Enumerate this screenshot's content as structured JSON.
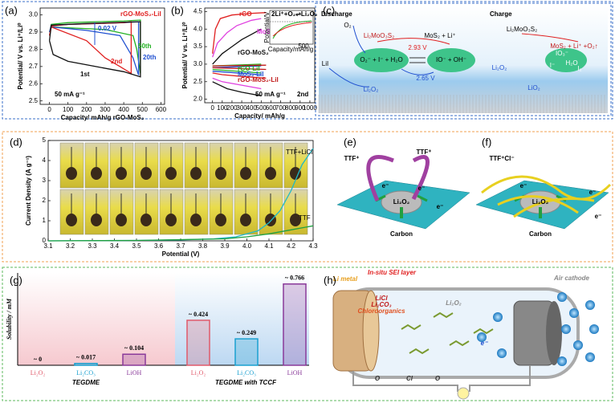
{
  "panel_labels": [
    "(a)",
    "(b)",
    "(c)",
    "(d)",
    "(e)",
    "(f)",
    "(g)",
    "(h)"
  ],
  "chart_data": [
    {
      "type": "line",
      "x_label": "Capacity/ mAh/g rGO-MoS₂",
      "y_label": "Potential/ V vs. Li⁺/Li⁰",
      "xlim": [
        -50,
        620
      ],
      "xticks": [
        0,
        100,
        200,
        300,
        400,
        500,
        600
      ],
      "ylim": [
        2.48,
        3.04
      ],
      "yticks": [
        2.5,
        2.6,
        2.7,
        2.8,
        2.9,
        {
          "value": 3,
          "label": "3.0"
        }
      ],
      "annotations": [
        "rGO-MoS₂-LiI",
        "0.02 V",
        "50 mA g⁻¹"
      ],
      "series": [
        {
          "name": "50th",
          "color": "#21b021",
          "x": [
            0,
            10,
            100,
            250,
            400,
            490,
            490,
            470,
            450,
            300,
            100,
            10,
            0
          ],
          "y": [
            2.9,
            2.945,
            2.955,
            2.96,
            2.965,
            2.97,
            2.66,
            2.8,
            2.88,
            2.915,
            2.925,
            2.93,
            2.9
          ]
        },
        {
          "name": "20th",
          "color": "#2050d0",
          "x": [
            0,
            10,
            100,
            250,
            400,
            480,
            480,
            450,
            380,
            200,
            10,
            0
          ],
          "y": [
            2.9,
            2.94,
            2.945,
            2.95,
            2.955,
            2.96,
            2.65,
            2.75,
            2.88,
            2.91,
            2.93,
            2.9
          ]
        },
        {
          "name": "2nd",
          "color": "#e02020",
          "x": [
            0,
            10,
            100,
            250,
            400,
            440,
            440,
            380,
            300,
            200,
            10,
            0
          ],
          "y": [
            2.88,
            2.935,
            2.945,
            2.95,
            2.955,
            2.96,
            2.66,
            2.7,
            2.75,
            2.85,
            2.93,
            2.88
          ]
        },
        {
          "name": "1st",
          "color": "#111111",
          "x": [
            0,
            10,
            200,
            480,
            490,
            490,
            400,
            250,
            100,
            20,
            0
          ],
          "y": [
            2.85,
            2.94,
            2.95,
            2.96,
            2.96,
            2.64,
            2.67,
            2.7,
            2.73,
            2.77,
            2.85
          ]
        }
      ]
    },
    {
      "type": "line",
      "x_label": "Capacity/ mAh/g",
      "y_label": "Potential/ V vs. Li⁺/Li⁰",
      "xlim": [
        -80,
        1050
      ],
      "xticks": [
        0,
        100,
        200,
        300,
        400,
        500,
        600,
        700,
        800,
        900,
        1000
      ],
      "ylim": [
        1.9,
        4.6
      ],
      "yticks": [
        {
          "value": 2,
          "label": "2.0"
        },
        2.5,
        {
          "value": 3,
          "label": "3.0"
        },
        3.5,
        {
          "value": 4,
          "label": "4.0"
        },
        4.5
      ],
      "annotations": [
        "2nd",
        "50 mA g⁻¹"
      ],
      "inset": {
        "title": "2Li⁺+O₂⇌Li₂O₂ (2.96V)",
        "x_label": "Capacity/mAh/g",
        "y_label": "Potential/V",
        "tick": "500"
      },
      "series": [
        {
          "name": "rGO",
          "color": "#e02020",
          "x": [
            0,
            30,
            80,
            200,
            400,
            550,
            null,
            0,
            100,
            300,
            550
          ],
          "y": [
            3.3,
            4.0,
            4.3,
            4.4,
            4.45,
            4.47,
            null,
            2.75,
            2.7,
            2.65,
            2.6
          ]
        },
        {
          "name": "MoS₂",
          "color": "#e040e0",
          "x": [
            0,
            50,
            150,
            250,
            400,
            500,
            null,
            0,
            100,
            300,
            500
          ],
          "y": [
            3.2,
            3.6,
            3.9,
            4.1,
            4.25,
            4.3,
            null,
            2.6,
            2.5,
            2.4,
            2.3
          ]
        },
        {
          "name": "rGO-MoS₂",
          "color": "#111111",
          "x": [
            0,
            100,
            200,
            300,
            400,
            500,
            null,
            0,
            150,
            300,
            500
          ],
          "y": [
            3.0,
            3.3,
            3.5,
            3.7,
            3.85,
            4.0,
            null,
            2.5,
            2.3,
            2.2,
            2.1
          ]
        },
        {
          "name": "rGO-LiI",
          "color": "#21b021",
          "x": [
            0,
            500,
            null,
            0,
            500
          ],
          "y": [
            2.95,
            3.0,
            null,
            2.85,
            2.75
          ]
        },
        {
          "name": "MoS₂-LiI",
          "color": "#2050d0",
          "x": [
            0,
            500,
            null,
            0,
            500
          ],
          "y": [
            2.9,
            2.95,
            null,
            2.8,
            2.7
          ]
        },
        {
          "name": "rGO-MoS₂-LiI",
          "color": "#c01818",
          "x": [
            0,
            550,
            null,
            0,
            550
          ],
          "y": [
            2.95,
            2.97,
            null,
            2.9,
            2.85
          ]
        }
      ]
    },
    {
      "type": "line",
      "x_label": "Potential (V)",
      "y_label": "Current Density (A g⁻¹)",
      "xlim": [
        3.1,
        4.3
      ],
      "xticks": [
        3.1,
        3.2,
        3.3,
        3.4,
        3.5,
        3.6,
        3.7,
        3.8,
        3.9,
        {
          "value": 4,
          "label": "4.0"
        },
        4.1,
        4.2,
        4.3
      ],
      "ylim": [
        0,
        5
      ],
      "yticks": [
        0,
        1,
        2,
        3,
        4,
        5
      ],
      "series": [
        {
          "name": "TTF+LiCl",
          "color": "#20b8c8",
          "x": [
            3.1,
            3.5,
            3.7,
            3.85,
            3.95,
            4.05,
            4.1,
            4.15,
            4.2,
            4.25,
            4.3
          ],
          "y": [
            0,
            0.02,
            0.05,
            0.1,
            0.2,
            0.5,
            0.9,
            1.5,
            2.5,
            3.8,
            4.6
          ]
        },
        {
          "name": "TTF",
          "color": "#20a040",
          "x": [
            3.1,
            3.5,
            3.9,
            4.0,
            4.1,
            4.2,
            4.3
          ],
          "y": [
            0,
            0.02,
            0.1,
            0.2,
            0.35,
            0.55,
            0.75
          ]
        }
      ]
    },
    {
      "type": "bar",
      "y_label": "Solubility / mM",
      "ylim": [
        0,
        0.87
      ],
      "categories": [
        "Li₂O₂",
        "Li₂CO₃",
        "LiOH",
        "Li₂O₂",
        "Li₂CO₃",
        "LiOH"
      ],
      "values": [
        0,
        0.017,
        0.104,
        0.424,
        0.249,
        0.766
      ],
      "value_labels": [
        "~ 0",
        "~ 0.017",
        "~ 0.104",
        "~ 0.424",
        "~ 0.249",
        "~ 0.766"
      ],
      "colors": [
        "#e05a6a",
        "#1aa0d0",
        "#8a3a9a",
        "#e05a6a",
        "#1aa0d0",
        "#8a3a9a"
      ],
      "groups": [
        "TEGDME",
        "TEGDME with TCCF"
      ]
    }
  ],
  "diagram_c": {
    "texts": [
      "Discharge",
      "Charge",
      "O₂",
      "Li₂MoO₃S₂",
      "MoS₂ + Li⁺",
      "2.93 V",
      "O₂⁻ + I⁻ + H₂O",
      "IO⁻ + OH⁻",
      "LiI",
      "2.65 V",
      "Li₂O₂",
      "Li₂MoO₃S₂",
      "MoS₂ + Li⁺ +O₂↑",
      "IO₃⁻",
      "H₂O",
      "I⁻",
      "I₂",
      "Li₂O₂",
      "LiO₂"
    ]
  },
  "diagram_e": {
    "texts": [
      "TTF⁺",
      "TTF⁺",
      "Li₂O₂",
      "e⁻",
      "e⁻",
      "e⁻",
      "Carbon"
    ]
  },
  "diagram_f": {
    "texts": [
      "TTF⁺Cl⁻",
      "Li₂O₂",
      "e⁻",
      "e⁻",
      "e⁻",
      "Carbon"
    ]
  },
  "diagram_h": {
    "texts": [
      "Li metal",
      "In-situ SEI layer",
      "LiCl",
      "Li₂CO₃",
      "Chloroorganics",
      "Li₂O₂",
      "Air cathode",
      "e⁻",
      "O",
      "Cl",
      "O"
    ]
  }
}
